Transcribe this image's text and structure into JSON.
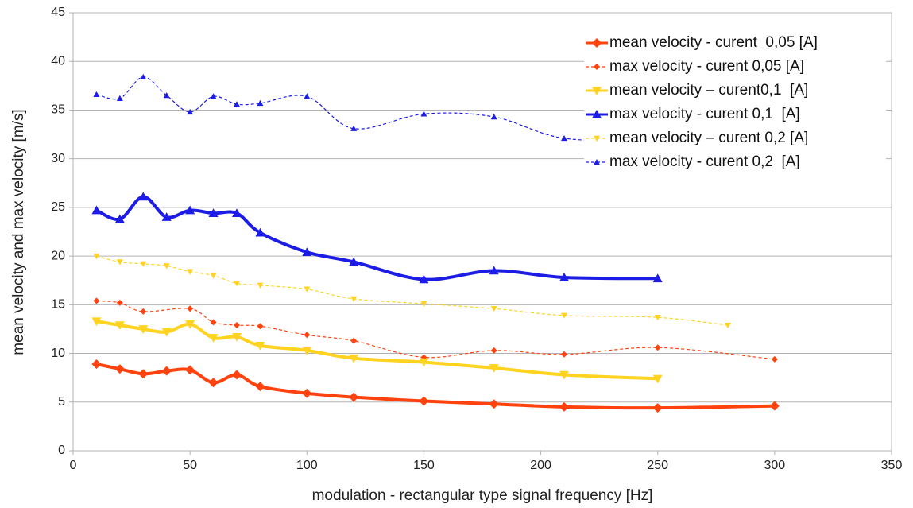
{
  "chart_data": {
    "type": "line",
    "xlabel": "modulation - rectangular type signal frequency  [Hz]",
    "ylabel": "mean velocity and max velocity  [m/s]",
    "xlim": [
      0,
      350
    ],
    "xticks": [
      0,
      50,
      100,
      150,
      200,
      250,
      300,
      350
    ],
    "ylim": [
      0,
      45
    ],
    "yticks": [
      0,
      5,
      10,
      15,
      20,
      25,
      30,
      35,
      40,
      45
    ],
    "grid": true,
    "legend": "upper right",
    "series": [
      {
        "name": "mean velocity - curent  0,05 [A]",
        "color": "#ff420e",
        "style": "solid",
        "marker": "diamond",
        "x": [
          10,
          20,
          30,
          40,
          50,
          60,
          70,
          80,
          100,
          120,
          150,
          180,
          210,
          250,
          300
        ],
        "values": [
          8.9,
          8.4,
          7.9,
          8.2,
          8.3,
          7.0,
          7.8,
          6.6,
          5.9,
          5.5,
          5.1,
          4.8,
          4.5,
          4.4,
          4.6
        ]
      },
      {
        "name": "max velocity - curent 0,05 [A]",
        "color": "#ff420e",
        "style": "dashed",
        "marker": "diamond",
        "x": [
          10,
          20,
          30,
          50,
          60,
          70,
          80,
          100,
          120,
          150,
          180,
          210,
          250,
          300
        ],
        "values": [
          15.4,
          15.2,
          14.3,
          14.6,
          13.2,
          12.9,
          12.8,
          11.9,
          11.3,
          9.6,
          10.3,
          9.9,
          10.6,
          9.4
        ]
      },
      {
        "name": "mean velocity – curent0,1  [A]",
        "color": "#ffd320",
        "style": "solid",
        "marker": "triangle-down",
        "x": [
          10,
          20,
          30,
          40,
          50,
          60,
          70,
          80,
          100,
          120,
          150,
          180,
          210,
          250
        ],
        "values": [
          13.3,
          12.9,
          12.5,
          12.2,
          13.0,
          11.6,
          11.7,
          10.8,
          10.3,
          9.5,
          9.1,
          8.5,
          7.8,
          7.4
        ]
      },
      {
        "name": "max velocity - curent 0,1  [A]",
        "color": "#1c1ce6",
        "style": "solid",
        "marker": "triangle-up",
        "x": [
          10,
          20,
          30,
          40,
          50,
          60,
          70,
          80,
          100,
          120,
          150,
          180,
          210,
          250
        ],
        "values": [
          24.7,
          23.8,
          26.1,
          24.0,
          24.7,
          24.4,
          24.4,
          22.4,
          20.4,
          19.4,
          17.6,
          18.5,
          17.8,
          17.7
        ]
      },
      {
        "name": "mean velocity – curent 0,2 [A]",
        "color": "#ffd320",
        "style": "dashed",
        "marker": "triangle-down",
        "x": [
          10,
          20,
          30,
          40,
          50,
          60,
          70,
          80,
          100,
          120,
          150,
          180,
          210,
          250,
          280
        ],
        "values": [
          20.0,
          19.4,
          19.2,
          19.0,
          18.4,
          18.0,
          17.2,
          17.0,
          16.6,
          15.6,
          15.1,
          14.6,
          13.9,
          13.7,
          12.9
        ]
      },
      {
        "name": "max velocity - curent 0,2  [A]",
        "color": "#1c1ce6",
        "style": "dashed",
        "marker": "triangle-up",
        "x": [
          10,
          20,
          30,
          40,
          50,
          60,
          70,
          80,
          100,
          120,
          150,
          180,
          210,
          250
        ],
        "values": [
          36.6,
          36.2,
          38.4,
          36.5,
          34.8,
          36.4,
          35.6,
          35.7,
          36.4,
          33.1,
          34.6,
          34.3,
          32.1,
          31.9
        ]
      }
    ]
  }
}
